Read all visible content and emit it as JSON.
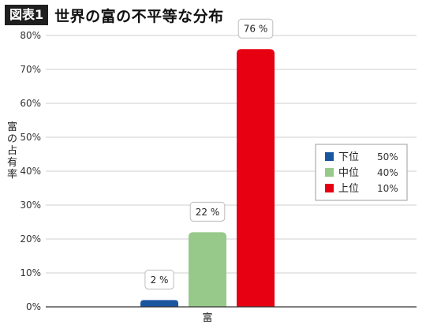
{
  "header": {
    "badge": "図表1",
    "title": "世界の富の不平等な分布"
  },
  "chart_data": {
    "type": "bar",
    "title": "世界の富の不平等な分布",
    "categories": [
      "下位 50%",
      "中位 40%",
      "上位 10%"
    ],
    "values": [
      2,
      22,
      76
    ],
    "data_labels": [
      "2 %",
      "22 %",
      "76 %"
    ],
    "xlabel": "富",
    "ylabel": "富の占有率",
    "ylim": [
      0,
      80
    ],
    "yticks": [
      0,
      10,
      20,
      30,
      40,
      50,
      60,
      70,
      80
    ],
    "ytick_labels": [
      "0%",
      "10%",
      "20%",
      "30%",
      "40%",
      "50%",
      "60%",
      "70%",
      "80%"
    ],
    "legend_position": "right",
    "legend": [
      {
        "name": "下位",
        "share": "50%",
        "color": "#1a55a0"
      },
      {
        "name": "中位",
        "share": "40%",
        "color": "#96c98a"
      },
      {
        "name": "上位",
        "share": "10%",
        "color": "#e60012"
      }
    ],
    "colors": [
      "#1a55a0",
      "#96c98a",
      "#e60012"
    ]
  }
}
